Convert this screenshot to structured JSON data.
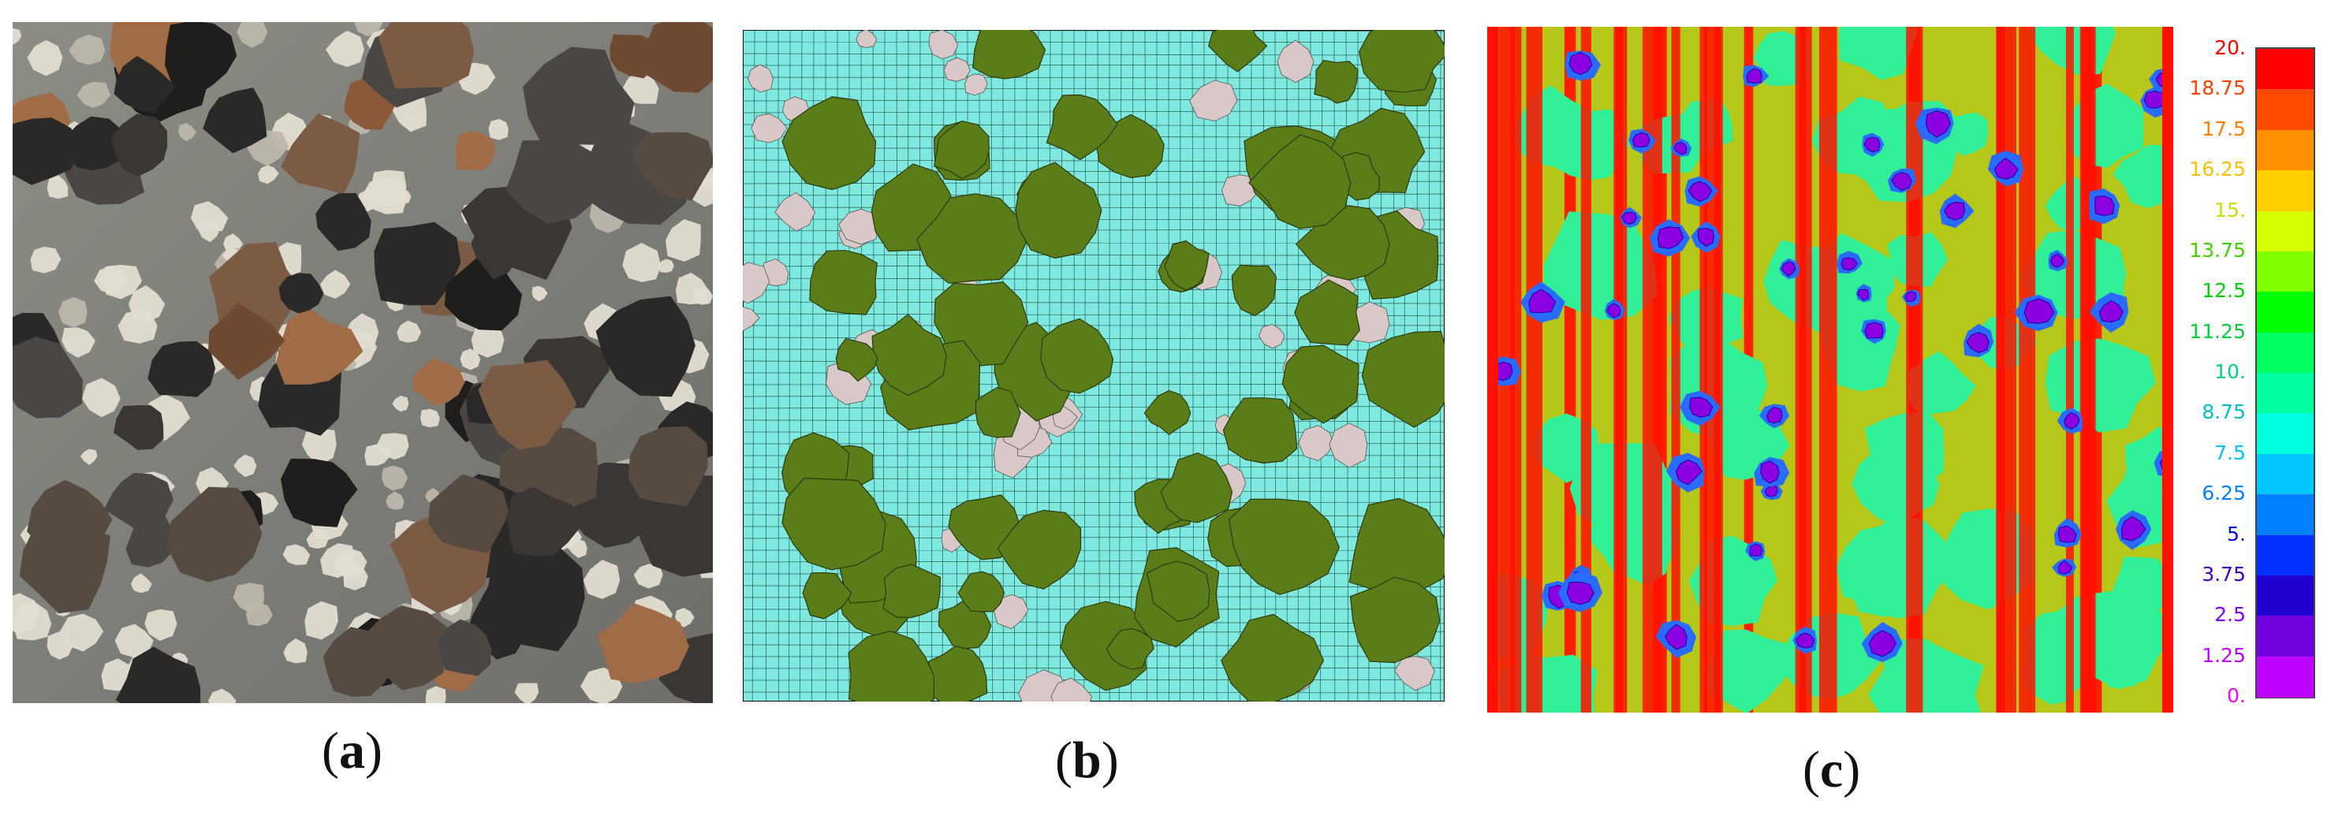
{
  "panels": [
    {
      "id": "a",
      "caption_open": "(",
      "caption_letter": "a",
      "caption_close": ")"
    },
    {
      "id": "b",
      "caption_open": "(",
      "caption_letter": "b",
      "caption_close": ")"
    },
    {
      "id": "c",
      "caption_open": "(",
      "caption_letter": "c",
      "caption_close": ")"
    }
  ],
  "legend": {
    "ticks": [
      "20.",
      "18.75",
      "17.5",
      "16.25",
      "15.",
      "13.75",
      "12.5",
      "11.25",
      "10.",
      "8.75",
      "7.5",
      "6.25",
      "5.",
      "3.75",
      "2.5",
      "1.25",
      "0."
    ],
    "tick_colors": [
      "#ff0000",
      "#ff4000",
      "#ff8000",
      "#ffc000",
      "#c8e000",
      "#40d000",
      "#00d000",
      "#00d040",
      "#00d080",
      "#00c0c0",
      "#00c0ff",
      "#0080ff",
      "#0000ff",
      "#4000c0",
      "#8000ff",
      "#c000ff",
      "#ff00ff"
    ],
    "segment_colors": [
      "#ff0000",
      "#ff4a00",
      "#ff9000",
      "#ffd000",
      "#d8ff00",
      "#80ff00",
      "#00ff00",
      "#00ff60",
      "#00ffa0",
      "#00ffe0",
      "#00c8ff",
      "#0080ff",
      "#0030ff",
      "#2000d0",
      "#7000e0",
      "#c000ff"
    ]
  },
  "colors": {
    "mesh_bg": "#7fe8df",
    "aggregate_green": "#5a7d1a",
    "aggregate_white": "#d9c8c8",
    "field_green": "#30ef96",
    "field_red": "#ff1000"
  }
}
